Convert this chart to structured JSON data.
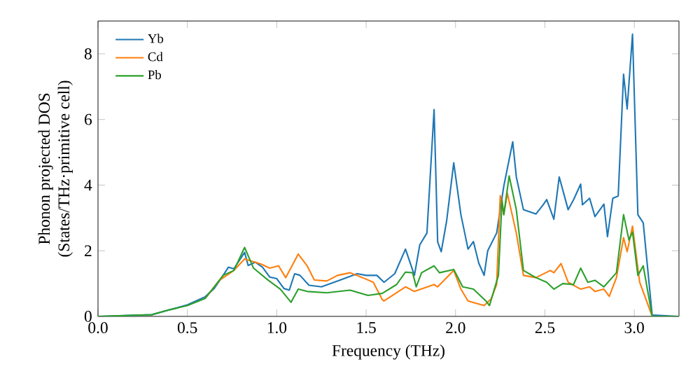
{
  "chart_data": {
    "type": "line",
    "xlabel": "Frequency (THz)",
    "ylabel": "Phonon projected DOS\n(States/THz·primitive cell)",
    "xlim": [
      0,
      3.25
    ],
    "ylim": [
      0,
      9
    ],
    "xticks": [
      {
        "value": 0,
        "label": "0.0"
      },
      {
        "value": 0.5,
        "label": "0.5"
      },
      {
        "value": 1,
        "label": "1.0"
      },
      {
        "value": 1.5,
        "label": "1.5"
      },
      {
        "value": 2,
        "label": "2.0"
      },
      {
        "value": 2.5,
        "label": "2.5"
      },
      {
        "value": 3,
        "label": "3.0"
      }
    ],
    "yticks": [
      0,
      2,
      4,
      6,
      8
    ],
    "legend": "top left",
    "grid": false,
    "series": [
      {
        "name": "Yb",
        "color": "#1f77b4",
        "x": [
          0,
          0.3,
          0.4,
          0.5,
          0.6,
          0.65,
          0.7,
          0.73,
          0.76,
          0.82,
          0.84,
          0.88,
          0.92,
          0.96,
          1.0,
          1.04,
          1.07,
          1.1,
          1.13,
          1.18,
          1.25,
          1.35,
          1.45,
          1.5,
          1.56,
          1.6,
          1.66,
          1.72,
          1.77,
          1.8,
          1.84,
          1.88,
          1.9,
          1.92,
          1.95,
          1.99,
          2.03,
          2.07,
          2.1,
          2.13,
          2.16,
          2.18,
          2.23,
          2.27,
          2.32,
          2.34,
          2.38,
          2.45,
          2.49,
          2.51,
          2.55,
          2.58,
          2.63,
          2.66,
          2.7,
          2.71,
          2.75,
          2.78,
          2.83,
          2.85,
          2.88,
          2.91,
          2.94,
          2.96,
          2.99,
          3.02,
          3.05,
          3.1,
          3.25
        ],
        "values": [
          0,
          0.05,
          0.2,
          0.35,
          0.6,
          0.85,
          1.25,
          1.5,
          1.45,
          1.95,
          1.55,
          1.65,
          1.5,
          1.2,
          1.15,
          0.85,
          0.8,
          1.3,
          1.25,
          0.95,
          0.9,
          1.1,
          1.3,
          1.25,
          1.25,
          1.04,
          1.3,
          2.05,
          1.25,
          2.18,
          2.54,
          6.3,
          2.27,
          1.97,
          2.9,
          4.68,
          3.1,
          2.05,
          2.28,
          1.62,
          1.25,
          2.0,
          2.54,
          3.97,
          5.32,
          4.25,
          3.25,
          3.12,
          3.4,
          3.56,
          2.96,
          4.25,
          3.25,
          3.55,
          4.03,
          3.4,
          3.6,
          3.04,
          3.42,
          2.43,
          3.6,
          3.67,
          7.38,
          6.32,
          8.6,
          3.1,
          2.85,
          0.04,
          0
        ]
      },
      {
        "name": "Cd",
        "color": "#ff7f0e",
        "x": [
          0.6,
          0.68,
          0.76,
          0.82,
          0.91,
          0.96,
          1.01,
          1.05,
          1.12,
          1.17,
          1.21,
          1.28,
          1.34,
          1.41,
          1.48,
          1.54,
          1.59,
          1.6,
          1.72,
          1.77,
          1.88,
          1.9,
          1.99,
          2.03,
          2.07,
          2.16,
          2.2,
          2.23,
          2.25,
          2.27,
          2.29,
          2.34,
          2.38,
          2.45,
          2.53,
          2.55,
          2.59,
          2.63,
          2.7,
          2.75,
          2.78,
          2.83,
          2.86,
          2.9,
          2.94,
          2.96,
          2.99,
          3.03,
          3.06,
          3.1,
          3.25
        ],
        "values": [
          0.55,
          1.1,
          1.4,
          1.75,
          1.6,
          1.47,
          1.54,
          1.18,
          1.9,
          1.54,
          1.11,
          1.08,
          1.25,
          1.33,
          1.18,
          1.04,
          0.51,
          0.47,
          0.9,
          0.76,
          0.97,
          0.9,
          1.4,
          0.83,
          0.47,
          0.33,
          0.54,
          0.97,
          3.68,
          3.1,
          3.75,
          2.54,
          1.25,
          1.18,
          1.4,
          1.33,
          1.61,
          1.04,
          0.83,
          0.9,
          0.76,
          0.83,
          0.61,
          1.18,
          2.4,
          1.97,
          2.75,
          1.04,
          0.6,
          0,
          0
        ]
      },
      {
        "name": "Pb",
        "color": "#2ca02c",
        "x": [
          0,
          0.3,
          0.4,
          0.5,
          0.6,
          0.7,
          0.76,
          0.82,
          0.87,
          0.95,
          1.02,
          1.08,
          1.12,
          1.17,
          1.28,
          1.41,
          1.51,
          1.59,
          1.67,
          1.72,
          1.76,
          1.78,
          1.81,
          1.88,
          1.91,
          1.99,
          2.04,
          2.1,
          2.17,
          2.19,
          2.24,
          2.26,
          2.27,
          2.3,
          2.34,
          2.38,
          2.45,
          2.51,
          2.55,
          2.6,
          2.66,
          2.7,
          2.74,
          2.78,
          2.83,
          2.9,
          2.94,
          2.97,
          2.99,
          3.02,
          3.05,
          3.1,
          3.25
        ],
        "values": [
          0,
          0.05,
          0.2,
          0.33,
          0.55,
          1.25,
          1.4,
          2.1,
          1.47,
          1.11,
          0.83,
          0.43,
          0.83,
          0.76,
          0.72,
          0.8,
          0.64,
          0.7,
          0.97,
          1.35,
          1.33,
          0.9,
          1.33,
          1.54,
          1.33,
          1.43,
          0.9,
          0.83,
          0.47,
          0.33,
          1.25,
          3.54,
          3.1,
          4.28,
          3.25,
          1.4,
          1.18,
          1.04,
          0.83,
          1.0,
          0.97,
          1.47,
          1.04,
          1.1,
          0.9,
          1.33,
          3.1,
          2.33,
          2.57,
          1.25,
          1.54,
          0,
          0
        ]
      }
    ]
  }
}
